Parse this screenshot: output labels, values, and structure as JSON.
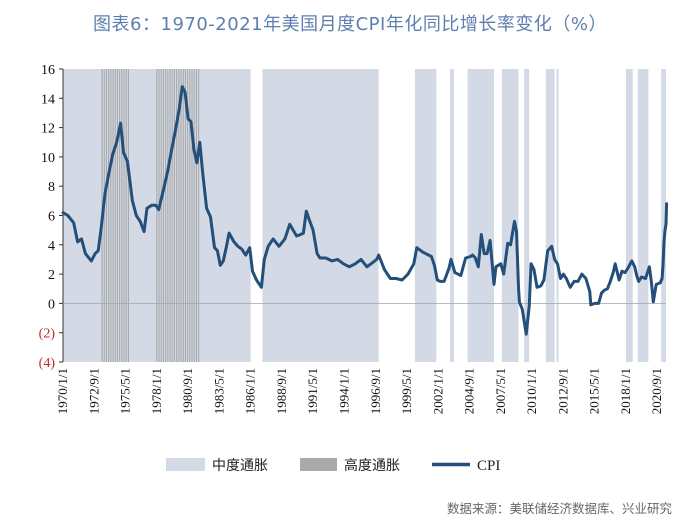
{
  "chart_data": {
    "type": "line",
    "title": "图表6：1970-2021年美国月度CPI年化同比增长率变化（%）",
    "xlabel": "",
    "ylabel": "",
    "ylim": [
      -4,
      16
    ],
    "yticks": [
      16,
      14,
      12,
      10,
      8,
      6,
      4,
      2,
      0,
      -2,
      -4
    ],
    "ytick_labels": [
      "16",
      "14",
      "12",
      "10",
      "8",
      "6",
      "4",
      "2",
      "0",
      "(2)",
      "(4)"
    ],
    "negative_tick_color": "#c0282d",
    "xlim": [
      "1970-01-01",
      "2021-06-01"
    ],
    "xtick_labels": [
      "1970/1/1",
      "1972/9/1",
      "1975/5/1",
      "1978/1/1",
      "1980/9/1",
      "1983/5/1",
      "1986/1/1",
      "1988/9/1",
      "1991/5/1",
      "1994/1/1",
      "1996/9/1",
      "1999/5/1",
      "2002/1/1",
      "2004/9/1",
      "2007/5/1",
      "2010/1/1",
      "2012/9/1",
      "2015/5/1",
      "2018/1/1",
      "2020/9/1"
    ],
    "grid": false,
    "legend": {
      "placement": "bottom",
      "items": [
        {
          "label": "中度通胀",
          "type": "area",
          "color": "#d3dae5"
        },
        {
          "label": "高度通胀",
          "type": "area",
          "color": "#a9a9a9"
        },
        {
          "label": "CPI",
          "type": "line",
          "color": "#234f7a"
        }
      ]
    },
    "shaded_regions": {
      "moderate": [
        [
          "1970-01-01",
          "1986-01-01"
        ],
        [
          "1987-01-01",
          "1996-12-01"
        ],
        [
          "2000-01-01",
          "2001-11-01"
        ],
        [
          "2003-01-01",
          "2003-05-01"
        ],
        [
          "2004-07-01",
          "2006-10-01"
        ],
        [
          "2007-06-01",
          "2008-11-01"
        ],
        [
          "2009-05-01",
          "2009-10-01"
        ],
        [
          "2011-03-01",
          "2011-12-01"
        ],
        [
          "2012-02-01",
          "2012-04-01"
        ],
        [
          "2018-01-01",
          "2018-08-01"
        ],
        [
          "2019-01-01",
          "2019-12-01"
        ],
        [
          "2021-01-01",
          "2021-06-01"
        ]
      ],
      "high": [
        [
          "1973-05-01",
          "1975-10-01"
        ],
        [
          "1978-01-01",
          "1981-09-01"
        ]
      ]
    },
    "series": [
      {
        "name": "CPI",
        "color": "#234f7a",
        "points": [
          [
            "1970-01-01",
            6.2
          ],
          [
            "1970-06-01",
            6.0
          ],
          [
            "1970-12-01",
            5.5
          ],
          [
            "1971-04-01",
            4.2
          ],
          [
            "1971-08-01",
            4.4
          ],
          [
            "1971-12-01",
            3.4
          ],
          [
            "1972-06-01",
            2.9
          ],
          [
            "1972-10-01",
            3.4
          ],
          [
            "1973-01-01",
            3.6
          ],
          [
            "1973-04-01",
            5.1
          ],
          [
            "1973-08-01",
            7.5
          ],
          [
            "1973-12-01",
            8.9
          ],
          [
            "1974-04-01",
            10.2
          ],
          [
            "1974-08-01",
            11.0
          ],
          [
            "1974-12-01",
            12.3
          ],
          [
            "1975-03-01",
            10.3
          ],
          [
            "1975-07-01",
            9.7
          ],
          [
            "1975-12-01",
            7.0
          ],
          [
            "1976-04-01",
            6.0
          ],
          [
            "1976-08-01",
            5.6
          ],
          [
            "1976-12-01",
            4.9
          ],
          [
            "1977-03-01",
            6.5
          ],
          [
            "1977-08-01",
            6.7
          ],
          [
            "1977-12-01",
            6.7
          ],
          [
            "1978-03-01",
            6.4
          ],
          [
            "1978-08-01",
            7.8
          ],
          [
            "1978-12-01",
            9.0
          ],
          [
            "1979-04-01",
            10.4
          ],
          [
            "1979-08-01",
            11.8
          ],
          [
            "1979-12-01",
            13.3
          ],
          [
            "1980-03-01",
            14.8
          ],
          [
            "1980-06-01",
            14.4
          ],
          [
            "1980-09-01",
            12.6
          ],
          [
            "1980-12-01",
            12.4
          ],
          [
            "1981-03-01",
            10.5
          ],
          [
            "1981-06-01",
            9.6
          ],
          [
            "1981-09-01",
            11.0
          ],
          [
            "1981-12-01",
            8.9
          ],
          [
            "1982-04-01",
            6.5
          ],
          [
            "1982-08-01",
            5.9
          ],
          [
            "1982-12-01",
            3.8
          ],
          [
            "1983-03-01",
            3.6
          ],
          [
            "1983-06-01",
            2.6
          ],
          [
            "1983-09-01",
            2.9
          ],
          [
            "1983-12-01",
            3.8
          ],
          [
            "1984-03-01",
            4.8
          ],
          [
            "1984-08-01",
            4.2
          ],
          [
            "1984-12-01",
            3.9
          ],
          [
            "1985-04-01",
            3.7
          ],
          [
            "1985-08-01",
            3.3
          ],
          [
            "1985-12-01",
            3.8
          ],
          [
            "1986-03-01",
            2.2
          ],
          [
            "1986-07-01",
            1.6
          ],
          [
            "1986-12-01",
            1.1
          ],
          [
            "1987-03-01",
            3.0
          ],
          [
            "1987-07-01",
            3.9
          ],
          [
            "1987-12-01",
            4.4
          ],
          [
            "1988-06-01",
            3.9
          ],
          [
            "1988-12-01",
            4.4
          ],
          [
            "1989-05-01",
            5.4
          ],
          [
            "1989-12-01",
            4.6
          ],
          [
            "1990-04-01",
            4.7
          ],
          [
            "1990-07-01",
            4.8
          ],
          [
            "1990-10-01",
            6.3
          ],
          [
            "1991-01-01",
            5.7
          ],
          [
            "1991-05-01",
            5.0
          ],
          [
            "1991-09-01",
            3.4
          ],
          [
            "1991-12-01",
            3.1
          ],
          [
            "1992-06-01",
            3.1
          ],
          [
            "1992-12-01",
            2.9
          ],
          [
            "1993-06-01",
            3.0
          ],
          [
            "1993-12-01",
            2.7
          ],
          [
            "1994-06-01",
            2.5
          ],
          [
            "1994-12-01",
            2.7
          ],
          [
            "1995-06-01",
            3.0
          ],
          [
            "1995-12-01",
            2.5
          ],
          [
            "1996-06-01",
            2.8
          ],
          [
            "1996-10-01",
            3.0
          ],
          [
            "1996-12-01",
            3.3
          ],
          [
            "1997-06-01",
            2.3
          ],
          [
            "1997-12-01",
            1.7
          ],
          [
            "1998-06-01",
            1.7
          ],
          [
            "1998-12-01",
            1.6
          ],
          [
            "1999-06-01",
            2.0
          ],
          [
            "1999-12-01",
            2.7
          ],
          [
            "2000-03-01",
            3.8
          ],
          [
            "2000-09-01",
            3.5
          ],
          [
            "2000-12-01",
            3.4
          ],
          [
            "2001-06-01",
            3.2
          ],
          [
            "2001-09-01",
            2.6
          ],
          [
            "2001-12-01",
            1.6
          ],
          [
            "2002-03-01",
            1.5
          ],
          [
            "2002-07-01",
            1.5
          ],
          [
            "2002-12-01",
            2.4
          ],
          [
            "2003-02-01",
            3.0
          ],
          [
            "2003-06-01",
            2.1
          ],
          [
            "2003-12-01",
            1.9
          ],
          [
            "2004-05-01",
            3.1
          ],
          [
            "2004-10-01",
            3.2
          ],
          [
            "2004-12-01",
            3.3
          ],
          [
            "2005-03-01",
            3.1
          ],
          [
            "2005-06-01",
            2.5
          ],
          [
            "2005-09-01",
            4.7
          ],
          [
            "2005-12-01",
            3.4
          ],
          [
            "2006-03-01",
            3.4
          ],
          [
            "2006-06-01",
            4.3
          ],
          [
            "2006-10-01",
            1.3
          ],
          [
            "2006-12-01",
            2.5
          ],
          [
            "2007-05-01",
            2.7
          ],
          [
            "2007-08-01",
            2.0
          ],
          [
            "2007-12-01",
            4.1
          ],
          [
            "2008-03-01",
            4.0
          ],
          [
            "2008-07-01",
            5.6
          ],
          [
            "2008-09-01",
            4.9
          ],
          [
            "2008-11-01",
            1.1
          ],
          [
            "2008-12-01",
            0.1
          ],
          [
            "2009-03-01",
            -0.4
          ],
          [
            "2009-07-01",
            -2.1
          ],
          [
            "2009-10-01",
            -0.2
          ],
          [
            "2009-12-01",
            2.7
          ],
          [
            "2010-03-01",
            2.3
          ],
          [
            "2010-06-01",
            1.1
          ],
          [
            "2010-10-01",
            1.2
          ],
          [
            "2011-01-01",
            1.6
          ],
          [
            "2011-05-01",
            3.6
          ],
          [
            "2011-09-01",
            3.9
          ],
          [
            "2011-12-01",
            3.0
          ],
          [
            "2012-03-01",
            2.7
          ],
          [
            "2012-06-01",
            1.7
          ],
          [
            "2012-09-01",
            2.0
          ],
          [
            "2012-12-01",
            1.7
          ],
          [
            "2013-04-01",
            1.1
          ],
          [
            "2013-08-01",
            1.5
          ],
          [
            "2013-12-01",
            1.5
          ],
          [
            "2014-04-01",
            2.0
          ],
          [
            "2014-08-01",
            1.7
          ],
          [
            "2014-12-01",
            0.8
          ],
          [
            "2015-01-01",
            -0.1
          ],
          [
            "2015-05-01",
            0.0
          ],
          [
            "2015-09-01",
            0.0
          ],
          [
            "2015-12-01",
            0.7
          ],
          [
            "2016-03-01",
            0.9
          ],
          [
            "2016-06-01",
            1.0
          ],
          [
            "2016-09-01",
            1.5
          ],
          [
            "2016-12-01",
            2.1
          ],
          [
            "2017-02-01",
            2.7
          ],
          [
            "2017-06-01",
            1.6
          ],
          [
            "2017-09-01",
            2.2
          ],
          [
            "2017-12-01",
            2.1
          ],
          [
            "2018-03-01",
            2.4
          ],
          [
            "2018-07-01",
            2.9
          ],
          [
            "2018-10-01",
            2.5
          ],
          [
            "2018-12-01",
            1.9
          ],
          [
            "2019-02-01",
            1.5
          ],
          [
            "2019-05-01",
            1.8
          ],
          [
            "2019-09-01",
            1.7
          ],
          [
            "2019-12-01",
            2.3
          ],
          [
            "2020-01-01",
            2.5
          ],
          [
            "2020-03-01",
            1.5
          ],
          [
            "2020-05-01",
            0.1
          ],
          [
            "2020-08-01",
            1.3
          ],
          [
            "2020-12-01",
            1.4
          ],
          [
            "2021-02-01",
            1.7
          ],
          [
            "2021-03-01",
            2.6
          ],
          [
            "2021-04-01",
            4.2
          ],
          [
            "2021-05-01",
            5.0
          ],
          [
            "2021-06-01",
            5.4
          ],
          [
            "2021-06-20",
            6.8
          ]
        ]
      }
    ],
    "source": "数据来源：美联储经济数据库、兴业研究"
  }
}
